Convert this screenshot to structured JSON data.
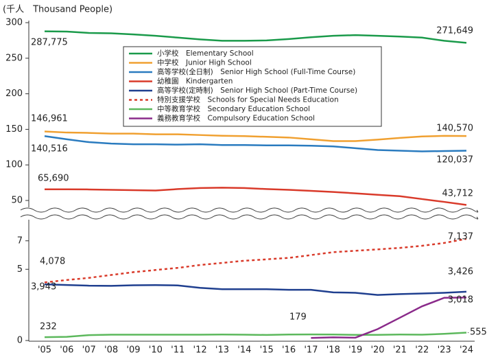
{
  "chart_data": {
    "type": "line",
    "y_label": "(千人　Thousand People)",
    "categories": [
      "'05",
      "'06",
      "'07",
      "'08",
      "'09",
      "'10",
      "'11",
      "'12",
      "'13",
      "'14",
      "'15",
      "'16",
      "'17",
      "'18",
      "'19",
      "'20",
      "'21",
      "'22",
      "'23",
      "'24"
    ],
    "ylim": [
      30000,
      300000
    ],
    "yticks": [
      {
        "value": 50000,
        "label": "50"
      },
      {
        "value": 100000,
        "label": "100"
      },
      {
        "value": 150000,
        "label": "150"
      },
      {
        "value": 200000,
        "label": "200"
      },
      {
        "value": 250000,
        "label": "250"
      },
      {
        "value": 300000,
        "label": "300"
      }
    ],
    "y2lim": [
      0,
      8000
    ],
    "y2ticks": [
      {
        "value": 0,
        "label": "0"
      },
      {
        "value": 5000,
        "label": "5"
      },
      {
        "value": 7000,
        "label": "7"
      }
    ],
    "series": [
      {
        "name": "小学校　Elementary School",
        "color": "#1a9a4a",
        "values": [
          287775,
          287500,
          285500,
          285000,
          283500,
          281500,
          279000,
          276500,
          274500,
          274500,
          275000,
          277000,
          279500,
          281500,
          282500,
          281500,
          280500,
          279000,
          274500,
          271649
        ],
        "value_labels": [
          "287,775",
          null,
          null,
          null,
          null,
          null,
          null,
          null,
          null,
          null,
          null,
          null,
          null,
          null,
          null,
          null,
          null,
          null,
          null,
          "271,649"
        ]
      },
      {
        "name": "中学校　Junior High School",
        "color": "#f0a030",
        "values": [
          146961,
          145500,
          145000,
          144000,
          144000,
          143000,
          143000,
          142000,
          141000,
          140500,
          139500,
          138500,
          136000,
          133500,
          133500,
          135500,
          138000,
          140000,
          140800,
          140570
        ],
        "value_labels": [
          "146,961",
          null,
          null,
          null,
          null,
          null,
          null,
          null,
          null,
          null,
          null,
          null,
          null,
          null,
          null,
          null,
          null,
          null,
          null,
          "140,570"
        ]
      },
      {
        "name": "高等学校(全日制)　Senior High School (Full-Time Course)",
        "color": "#2a7bbf",
        "values": [
          140516,
          136000,
          132000,
          130000,
          129000,
          129000,
          128500,
          129000,
          128000,
          128000,
          127500,
          127500,
          127000,
          126000,
          123500,
          121000,
          120000,
          119000,
          119500,
          120037
        ],
        "value_labels": [
          "140,516",
          null,
          null,
          null,
          null,
          null,
          null,
          null,
          null,
          null,
          null,
          null,
          null,
          null,
          null,
          null,
          null,
          null,
          null,
          "120,037"
        ]
      },
      {
        "name": "幼稚園　Kindergarten",
        "color": "#d93a2a",
        "values": [
          65690,
          65700,
          65500,
          65000,
          64500,
          64000,
          66000,
          67500,
          68000,
          67500,
          66000,
          65000,
          63500,
          62000,
          60000,
          58000,
          56000,
          52000,
          48000,
          43712
        ],
        "value_labels": [
          "65,690",
          null,
          null,
          null,
          null,
          null,
          null,
          null,
          null,
          null,
          null,
          null,
          null,
          null,
          null,
          null,
          null,
          null,
          null,
          "43,712"
        ]
      },
      {
        "name": "高等学校(定時制)　Senior High School (Part-Time Course)",
        "color": "#1f3f8f",
        "axis": "y2",
        "values": [
          3943,
          3900,
          3850,
          3840,
          3880,
          3890,
          3870,
          3700,
          3600,
          3600,
          3600,
          3560,
          3560,
          3380,
          3350,
          3200,
          3260,
          3300,
          3350,
          3426
        ],
        "value_labels": [
          "3,943",
          null,
          null,
          null,
          null,
          null,
          null,
          null,
          null,
          null,
          null,
          null,
          null,
          null,
          null,
          null,
          null,
          null,
          null,
          "3,426"
        ]
      },
      {
        "name": "特別支援学校　Schools for Special Needs Education",
        "color": "#d93a2a",
        "dashed": true,
        "axis": "y2",
        "values": [
          4078,
          4250,
          4400,
          4600,
          4800,
          4950,
          5100,
          5300,
          5450,
          5600,
          5700,
          5800,
          6000,
          6200,
          6300,
          6400,
          6500,
          6650,
          6850,
          7137
        ],
        "value_labels": [
          "4,078",
          null,
          null,
          null,
          null,
          null,
          null,
          null,
          null,
          null,
          null,
          null,
          null,
          null,
          null,
          null,
          null,
          null,
          null,
          "7,137"
        ]
      },
      {
        "name": "中等教育学校　Secondary Education School",
        "color": "#5cb85c",
        "axis": "y2",
        "values": [
          232,
          260,
          380,
          410,
          410,
          410,
          410,
          410,
          420,
          410,
          390,
          420,
          430,
          420,
          400,
          400,
          420,
          410,
          470,
          555
        ],
        "value_labels": [
          "232",
          null,
          null,
          null,
          null,
          null,
          null,
          null,
          null,
          null,
          null,
          null,
          null,
          null,
          null,
          null,
          null,
          null,
          null,
          "555"
        ]
      },
      {
        "name": "義務教育学校　Compulsory Education School",
        "color": "#8a2a8a",
        "axis": "y2",
        "values": [
          null,
          null,
          null,
          null,
          null,
          null,
          null,
          null,
          null,
          null,
          null,
          null,
          179,
          220,
          200,
          800,
          1600,
          2400,
          3000,
          3018
        ],
        "value_labels": [
          null,
          null,
          null,
          null,
          null,
          null,
          null,
          null,
          null,
          null,
          null,
          null,
          "179",
          null,
          null,
          null,
          null,
          null,
          null,
          "3,018"
        ]
      }
    ]
  }
}
